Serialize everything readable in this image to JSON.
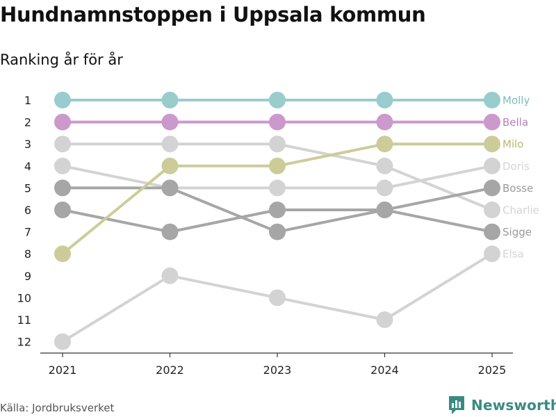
{
  "header": {
    "title": "Hundnamnstoppen i Uppsala kommun",
    "subtitle": "Ranking år för år"
  },
  "footer": {
    "source": "Källa: Jordbruksverket",
    "brand": "Newsworthy"
  },
  "colors": {
    "molly": "#99cccc",
    "bella": "#cc99cc",
    "milo": "#cccc99",
    "light_gray": "#d3d3d3",
    "dark_gray": "#a6a6a6",
    "axis": "#333333",
    "brand": "#3a8a84"
  },
  "chart_data": {
    "type": "line",
    "title": "Hundnamnstoppen i Uppsala kommun",
    "subtitle": "Ranking år för år",
    "x": [
      "2021",
      "2022",
      "2023",
      "2024",
      "2025"
    ],
    "y_ticks": [
      1,
      2,
      3,
      4,
      5,
      6,
      7,
      8,
      9,
      10,
      11,
      12
    ],
    "ylim": [
      1,
      12
    ],
    "y_inverted": true,
    "xlabel": "",
    "ylabel": "",
    "grid": false,
    "series": [
      {
        "name": "Elsa",
        "values": [
          12,
          9,
          10,
          11,
          8
        ],
        "color": "#d3d3d3",
        "label_color": "#d3d3d3"
      },
      {
        "name": "Doris",
        "values": [
          4,
          5,
          5,
          5,
          4
        ],
        "color": "#d3d3d3",
        "label_color": "#d3d3d3"
      },
      {
        "name": "Charlie",
        "values": [
          3,
          3,
          3,
          4,
          6
        ],
        "color": "#d3d3d3",
        "label_color": "#d3d3d3"
      },
      {
        "name": "Bosse",
        "values": [
          6,
          7,
          6,
          6,
          5
        ],
        "color": "#a6a6a6",
        "label_color": "#999999"
      },
      {
        "name": "Sigge",
        "values": [
          5,
          5,
          7,
          6,
          7
        ],
        "color": "#a6a6a6",
        "label_color": "#999999"
      },
      {
        "name": "Milo",
        "values": [
          8,
          4,
          4,
          3,
          3
        ],
        "color": "#cccc99",
        "label_color": "#b8b870"
      },
      {
        "name": "Bella",
        "values": [
          2,
          2,
          2,
          2,
          2
        ],
        "color": "#cc99cc",
        "label_color": "#b77fb7"
      },
      {
        "name": "Molly",
        "values": [
          1,
          1,
          1,
          1,
          1
        ],
        "color": "#99cccc",
        "label_color": "#7fbcbc"
      }
    ]
  }
}
